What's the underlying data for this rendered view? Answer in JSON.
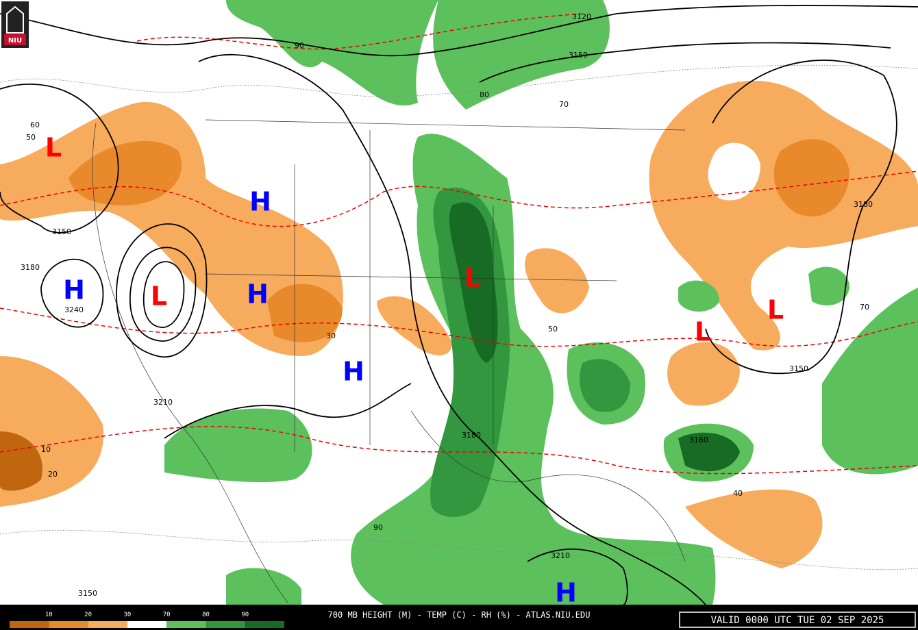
{
  "header": {
    "logo": "NIU"
  },
  "centers": [
    {
      "label": "L",
      "color": "#ff0000"
    },
    {
      "label": "H",
      "color": "#0000ff"
    },
    {
      "label": "H",
      "color": "#0000ff"
    },
    {
      "label": "L",
      "color": "#ff0000"
    },
    {
      "label": "H",
      "color": "#0000ff"
    },
    {
      "label": "L",
      "color": "#ff0000"
    },
    {
      "label": "H",
      "color": "#0000ff"
    },
    {
      "label": "L",
      "color": "#ff0000"
    },
    {
      "label": "L",
      "color": "#ff0000"
    },
    {
      "label": "H",
      "color": "#0000ff"
    }
  ],
  "height_labels": [
    "3120",
    "3150",
    "3150",
    "3180",
    "3240",
    "3180",
    "3210",
    "3150",
    "3180",
    "3150",
    "3160",
    "3210"
  ],
  "rh_labels": [
    "60",
    "50",
    "90",
    "80",
    "70",
    "50",
    "40",
    "90",
    "70",
    "20",
    "10",
    "30"
  ],
  "legend": {
    "labels": [
      "10",
      "20",
      "30",
      "70",
      "80",
      "90"
    ],
    "colors": [
      "#c0660f",
      "#e88a2c",
      "#f7ab5d",
      "#ffffff",
      "#5cc15c",
      "#32973f",
      "#176b25"
    ]
  },
  "footer": {
    "title": "700 MB HEIGHT (M) - TEMP (C) - RH (%) - ATLAS.NIU.EDU",
    "valid": "VALID 0000 UTC TUE 02 SEP 2025"
  }
}
